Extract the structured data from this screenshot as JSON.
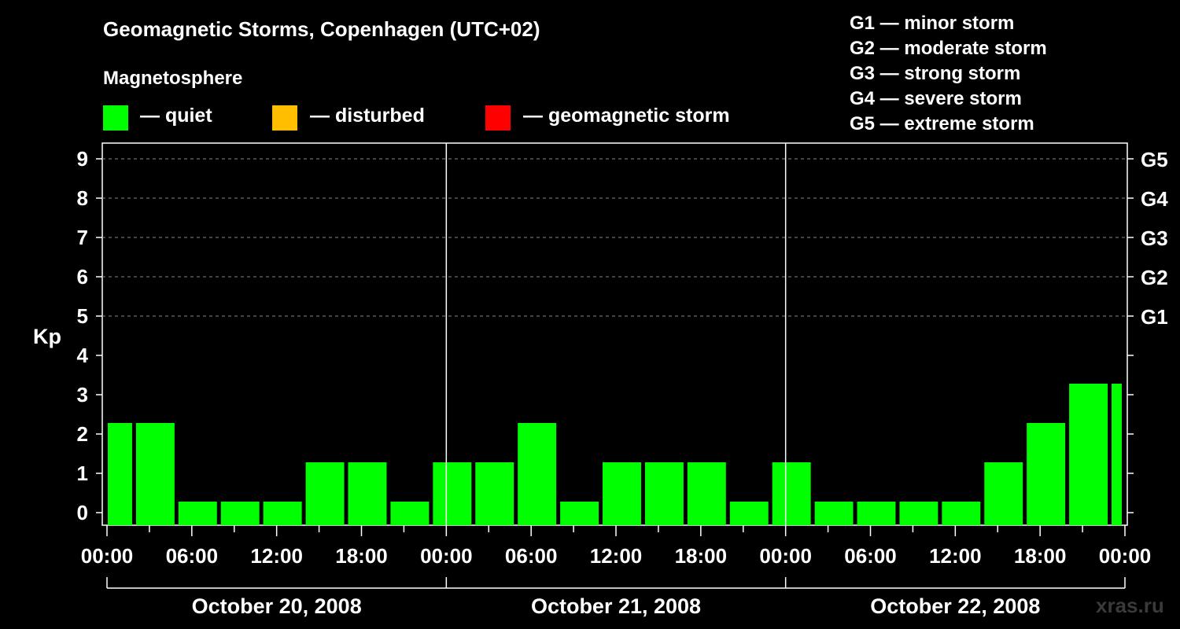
{
  "header": {
    "title": "Geomagnetic Storms, Copenhagen (UTC+02)",
    "subtitle": "Magnetosphere"
  },
  "legend": [
    {
      "label": "— quiet",
      "color": "#00ff00"
    },
    {
      "label": "— disturbed",
      "color": "#ffbf00"
    },
    {
      "label": "— geomagnetic storm",
      "color": "#ff0000"
    }
  ],
  "storm_scale": [
    "G1 — minor storm",
    "G2 — moderate storm",
    "G3 — strong storm",
    "G4 — severe storm",
    "G5 — extreme storm"
  ],
  "watermark": "xras.ru",
  "chart_data": {
    "type": "bar",
    "title": "Geomagnetic Storms, Copenhagen (UTC+02)",
    "ylabel": "Kp",
    "ylim": [
      0,
      9
    ],
    "yticks": [
      "0",
      "1",
      "2",
      "3",
      "4",
      "5",
      "6",
      "7",
      "8",
      "9"
    ],
    "right_axis_labels": [
      {
        "kp": 5,
        "label": "G1"
      },
      {
        "kp": 6,
        "label": "G2"
      },
      {
        "kp": 7,
        "label": "G3"
      },
      {
        "kp": 8,
        "label": "G4"
      },
      {
        "kp": 9,
        "label": "G5"
      }
    ],
    "grid": "dashed horizontal at Kp 5-9",
    "xlim_hours": [
      0,
      72
    ],
    "xtick_labels": [
      "00:00",
      "06:00",
      "12:00",
      "18:00",
      "00:00",
      "06:00",
      "12:00",
      "18:00",
      "00:00",
      "06:00",
      "12:00",
      "18:00",
      "00:00"
    ],
    "days": [
      "October 20, 2008",
      "October 21, 2008",
      "October 22, 2008"
    ],
    "bars": [
      {
        "start_hour": 0,
        "end_hour": 2,
        "kp": 2,
        "level": "quiet"
      },
      {
        "start_hour": 2,
        "end_hour": 5,
        "kp": 2,
        "level": "quiet"
      },
      {
        "start_hour": 5,
        "end_hour": 8,
        "kp": 0,
        "level": "quiet"
      },
      {
        "start_hour": 8,
        "end_hour": 11,
        "kp": 0,
        "level": "quiet"
      },
      {
        "start_hour": 11,
        "end_hour": 14,
        "kp": 0,
        "level": "quiet"
      },
      {
        "start_hour": 14,
        "end_hour": 17,
        "kp": 1,
        "level": "quiet"
      },
      {
        "start_hour": 17,
        "end_hour": 20,
        "kp": 1,
        "level": "quiet"
      },
      {
        "start_hour": 20,
        "end_hour": 23,
        "kp": 0,
        "level": "quiet"
      },
      {
        "start_hour": 23,
        "end_hour": 26,
        "kp": 1,
        "level": "quiet"
      },
      {
        "start_hour": 26,
        "end_hour": 29,
        "kp": 1,
        "level": "quiet"
      },
      {
        "start_hour": 29,
        "end_hour": 32,
        "kp": 2,
        "level": "quiet"
      },
      {
        "start_hour": 32,
        "end_hour": 35,
        "kp": 0,
        "level": "quiet"
      },
      {
        "start_hour": 35,
        "end_hour": 38,
        "kp": 1,
        "level": "quiet"
      },
      {
        "start_hour": 38,
        "end_hour": 41,
        "kp": 1,
        "level": "quiet"
      },
      {
        "start_hour": 41,
        "end_hour": 44,
        "kp": 1,
        "level": "quiet"
      },
      {
        "start_hour": 44,
        "end_hour": 47,
        "kp": 0,
        "level": "quiet"
      },
      {
        "start_hour": 47,
        "end_hour": 50,
        "kp": 1,
        "level": "quiet"
      },
      {
        "start_hour": 50,
        "end_hour": 53,
        "kp": 0,
        "level": "quiet"
      },
      {
        "start_hour": 53,
        "end_hour": 56,
        "kp": 0,
        "level": "quiet"
      },
      {
        "start_hour": 56,
        "end_hour": 59,
        "kp": 0,
        "level": "quiet"
      },
      {
        "start_hour": 59,
        "end_hour": 62,
        "kp": 0,
        "level": "quiet"
      },
      {
        "start_hour": 62,
        "end_hour": 65,
        "kp": 1,
        "level": "quiet"
      },
      {
        "start_hour": 65,
        "end_hour": 68,
        "kp": 2,
        "level": "quiet"
      },
      {
        "start_hour": 68,
        "end_hour": 71,
        "kp": 3,
        "level": "quiet"
      },
      {
        "start_hour": 71,
        "end_hour": 72,
        "kp": 3,
        "level": "quiet"
      }
    ],
    "level_colors": {
      "quiet": "#00ff00",
      "disturbed": "#ffbf00",
      "storm": "#ff0000"
    }
  }
}
